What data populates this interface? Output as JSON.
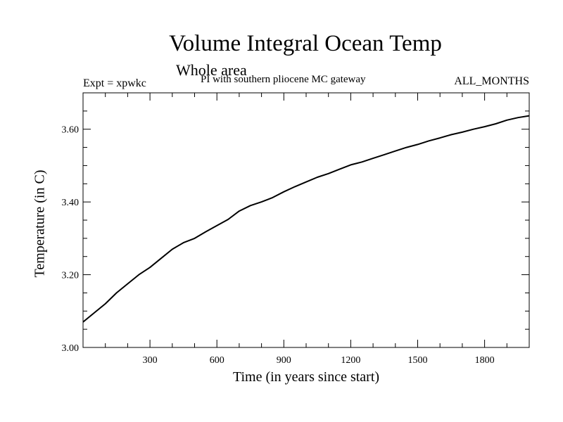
{
  "chart_data": {
    "type": "line",
    "title": "Volume Integral Ocean Temp",
    "subtitle": "Whole area",
    "experiment_label": "Expt = xpwkc",
    "description": "PI with southern pliocene MC gateway",
    "period": "ALL_MONTHS",
    "xlabel": "Time (in years since start)",
    "ylabel": "Temperature (in C)",
    "xlim": [
      0,
      2000
    ],
    "ylim": [
      3.0,
      3.7
    ],
    "x_ticks": [
      300,
      600,
      900,
      1200,
      1500,
      1800
    ],
    "x_tick_labels": [
      "300",
      "600",
      "900",
      "1200",
      "1500",
      "1800"
    ],
    "y_ticks": [
      3.0,
      3.2,
      3.4,
      3.6
    ],
    "y_tick_labels": [
      "3.00",
      "3.20",
      "3.40",
      "3.60"
    ],
    "series": [
      {
        "name": "xpwkc",
        "x": [
          0,
          50,
          100,
          150,
          200,
          250,
          300,
          350,
          400,
          450,
          500,
          550,
          600,
          650,
          700,
          750,
          800,
          850,
          900,
          950,
          1000,
          1050,
          1100,
          1150,
          1200,
          1250,
          1300,
          1350,
          1400,
          1450,
          1500,
          1550,
          1600,
          1650,
          1700,
          1750,
          1800,
          1850,
          1900,
          1950,
          2000
        ],
        "values": [
          3.07,
          3.095,
          3.12,
          3.15,
          3.175,
          3.2,
          3.22,
          3.245,
          3.27,
          3.288,
          3.3,
          3.318,
          3.335,
          3.352,
          3.375,
          3.39,
          3.4,
          3.412,
          3.428,
          3.442,
          3.455,
          3.468,
          3.478,
          3.49,
          3.502,
          3.51,
          3.52,
          3.53,
          3.54,
          3.55,
          3.558,
          3.568,
          3.576,
          3.585,
          3.592,
          3.6,
          3.607,
          3.615,
          3.625,
          3.632,
          3.637
        ]
      }
    ],
    "grid": false,
    "legend": "none"
  }
}
